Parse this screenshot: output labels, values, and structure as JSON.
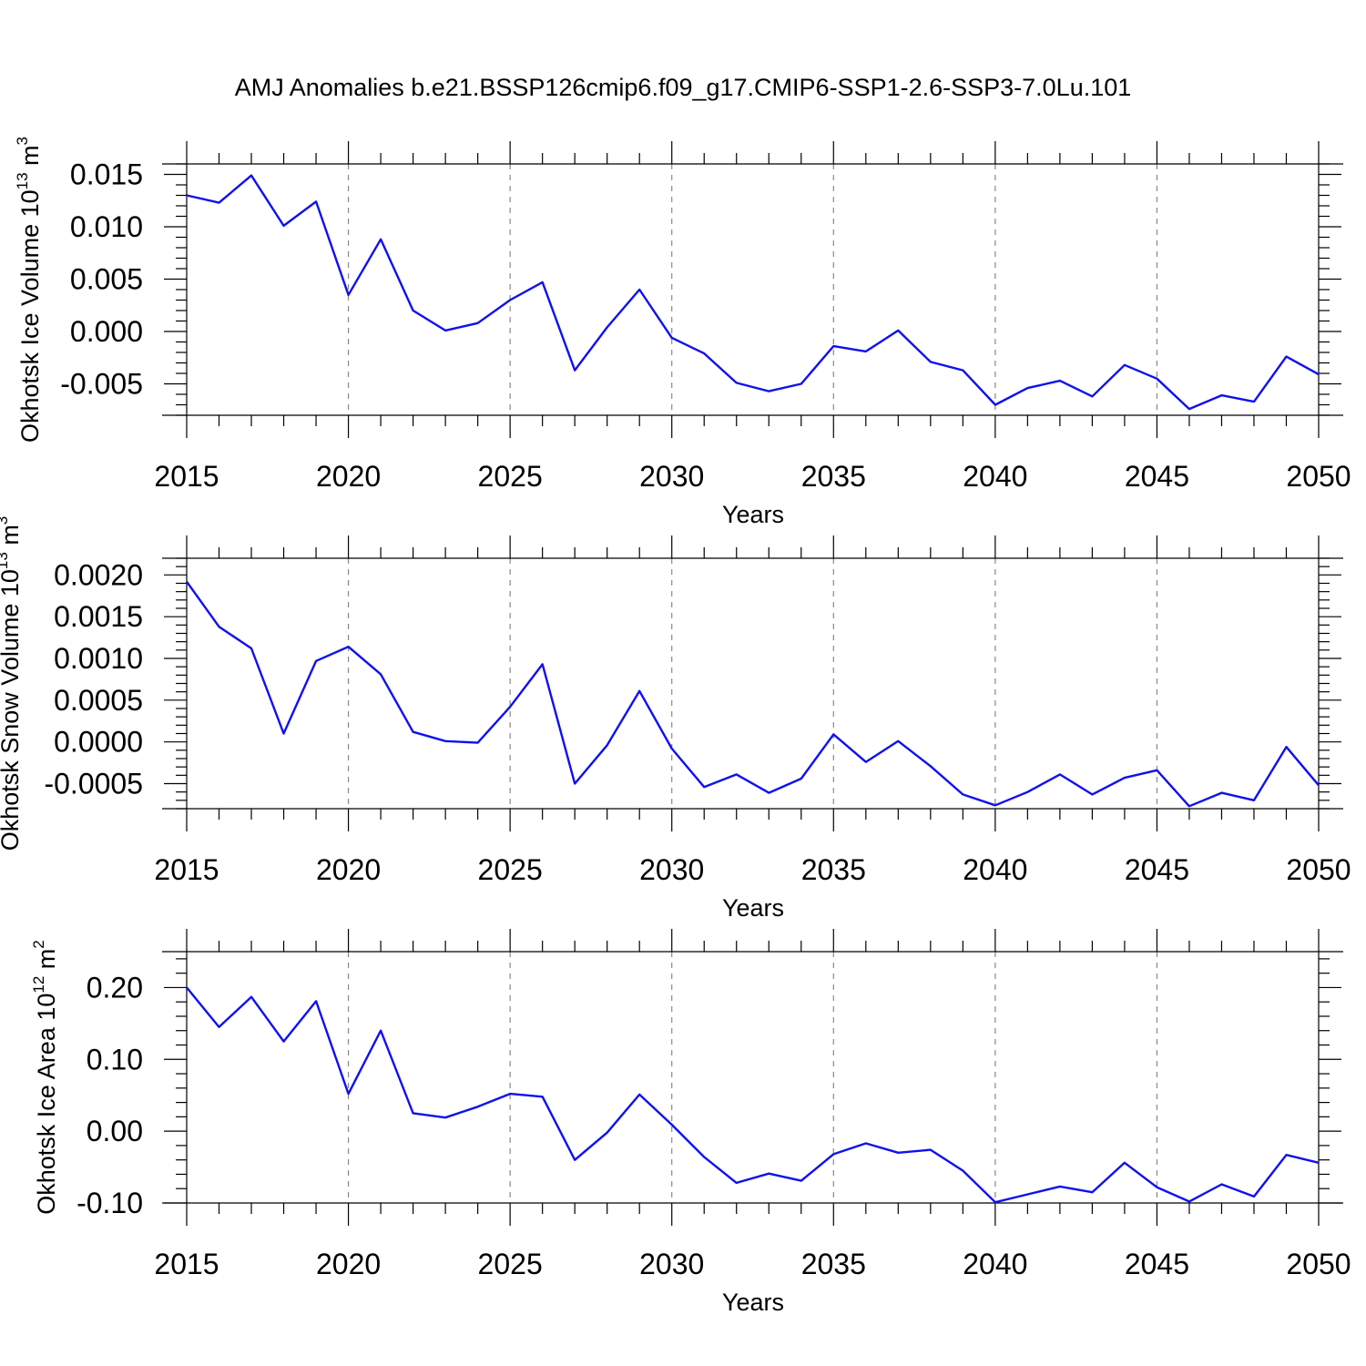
{
  "title": "AMJ Anomalies b.e21.BSSP126cmip6.f09_g17.CMIP6-SSP1-2.6-SSP3-7.0Lu.101",
  "colors": {
    "series": "#1010f0",
    "grid": "#888888",
    "axis": "#000000"
  },
  "chart_data": [
    {
      "type": "line",
      "ylabel": {
        "text": "Okhotsk Ice Volume 10",
        "exp": "13",
        "unit": " m",
        "unit_exp": "3"
      },
      "xlabel": "Years",
      "xlim": [
        2015,
        2050
      ],
      "ylim": [
        -0.008,
        0.016
      ],
      "xticks": [
        "2015",
        "2020",
        "2025",
        "2030",
        "2035",
        "2040",
        "2045",
        "2050"
      ],
      "yticks": [
        {
          "value": 0.015,
          "label": "0.015"
        },
        {
          "value": 0.01,
          "label": "0.010"
        },
        {
          "value": 0.005,
          "label": "0.005"
        },
        {
          "value": 0.0,
          "label": "0.000"
        },
        {
          "value": -0.005,
          "label": "-0.005"
        }
      ],
      "x": [
        2015,
        2016,
        2017,
        2018,
        2019,
        2020,
        2021,
        2022,
        2023,
        2024,
        2025,
        2026,
        2027,
        2028,
        2029,
        2030,
        2031,
        2032,
        2033,
        2034,
        2035,
        2036,
        2037,
        2038,
        2039,
        2040,
        2041,
        2042,
        2043,
        2044,
        2045,
        2046,
        2047,
        2048,
        2049,
        2050
      ],
      "values": [
        0.013,
        0.0123,
        0.0149,
        0.0101,
        0.0124,
        0.0035,
        0.0088,
        0.002,
        0.0001,
        0.0008,
        0.003,
        0.0047,
        -0.0037,
        0.0004,
        0.004,
        -0.0006,
        -0.0021,
        -0.0049,
        -0.0057,
        -0.005,
        -0.0014,
        -0.0019,
        0.0001,
        -0.0029,
        -0.0037,
        -0.007,
        -0.0054,
        -0.0047,
        -0.0062,
        -0.0032,
        -0.0045,
        -0.0074,
        -0.0061,
        -0.0067,
        -0.0024,
        -0.0041
      ]
    },
    {
      "type": "line",
      "ylabel": {
        "text": "Okhotsk Snow Volume 10",
        "exp": "13",
        "unit": " m",
        "unit_exp": "3"
      },
      "xlabel": "Years",
      "xlim": [
        2015,
        2050
      ],
      "ylim": [
        -0.0008,
        0.0022
      ],
      "xticks": [
        "2015",
        "2020",
        "2025",
        "2030",
        "2035",
        "2040",
        "2045",
        "2050"
      ],
      "yticks": [
        {
          "value": 0.002,
          "label": "0.0020"
        },
        {
          "value": 0.0015,
          "label": "0.0015"
        },
        {
          "value": 0.001,
          "label": "0.0010"
        },
        {
          "value": 0.0005,
          "label": "0.0005"
        },
        {
          "value": 0.0,
          "label": "0.0000"
        },
        {
          "value": -0.0005,
          "label": "-0.0005"
        }
      ],
      "x": [
        2015,
        2016,
        2017,
        2018,
        2019,
        2020,
        2021,
        2022,
        2023,
        2024,
        2025,
        2026,
        2027,
        2028,
        2029,
        2030,
        2031,
        2032,
        2033,
        2034,
        2035,
        2036,
        2037,
        2038,
        2039,
        2040,
        2041,
        2042,
        2043,
        2044,
        2045,
        2046,
        2047,
        2048,
        2049,
        2050
      ],
      "values": [
        0.00192,
        0.00138,
        0.00112,
        0.0001,
        0.00097,
        0.00114,
        0.00081,
        0.00012,
        1e-05,
        -1e-05,
        0.00042,
        0.00093,
        -0.0005,
        -4e-05,
        0.00061,
        -8e-05,
        -0.00054,
        -0.00039,
        -0.00061,
        -0.00044,
        9e-05,
        -0.00024,
        1e-05,
        -0.00029,
        -0.00063,
        -0.00076,
        -0.0006,
        -0.00039,
        -0.00063,
        -0.00043,
        -0.00034,
        -0.00077,
        -0.00061,
        -0.0007,
        -6e-05,
        -0.00052
      ]
    },
    {
      "type": "line",
      "ylabel": {
        "text": "Okhotsk Ice Area 10",
        "exp": "12",
        "unit": " m",
        "unit_exp": "2"
      },
      "xlabel": "Years",
      "xlim": [
        2015,
        2050
      ],
      "ylim": [
        -0.1,
        0.25
      ],
      "xticks": [
        "2015",
        "2020",
        "2025",
        "2030",
        "2035",
        "2040",
        "2045",
        "2050"
      ],
      "yticks": [
        {
          "value": 0.2,
          "label": "0.20"
        },
        {
          "value": 0.1,
          "label": "0.10"
        },
        {
          "value": 0.0,
          "label": "0.00"
        },
        {
          "value": -0.1,
          "label": "-0.10"
        }
      ],
      "x": [
        2015,
        2016,
        2017,
        2018,
        2019,
        2020,
        2021,
        2022,
        2023,
        2024,
        2025,
        2026,
        2027,
        2028,
        2029,
        2030,
        2031,
        2032,
        2033,
        2034,
        2035,
        2036,
        2037,
        2038,
        2039,
        2040,
        2041,
        2042,
        2043,
        2044,
        2045,
        2046,
        2047,
        2048,
        2049,
        2050
      ],
      "values": [
        0.2,
        0.145,
        0.187,
        0.125,
        0.181,
        0.052,
        0.14,
        0.025,
        0.019,
        0.034,
        0.052,
        0.048,
        -0.04,
        -0.002,
        0.051,
        0.009,
        -0.036,
        -0.072,
        -0.059,
        -0.069,
        -0.032,
        -0.017,
        -0.03,
        -0.026,
        -0.055,
        -0.099,
        -0.088,
        -0.077,
        -0.085,
        -0.044,
        -0.078,
        -0.098,
        -0.074,
        -0.091,
        -0.033,
        -0.044
      ]
    }
  ]
}
